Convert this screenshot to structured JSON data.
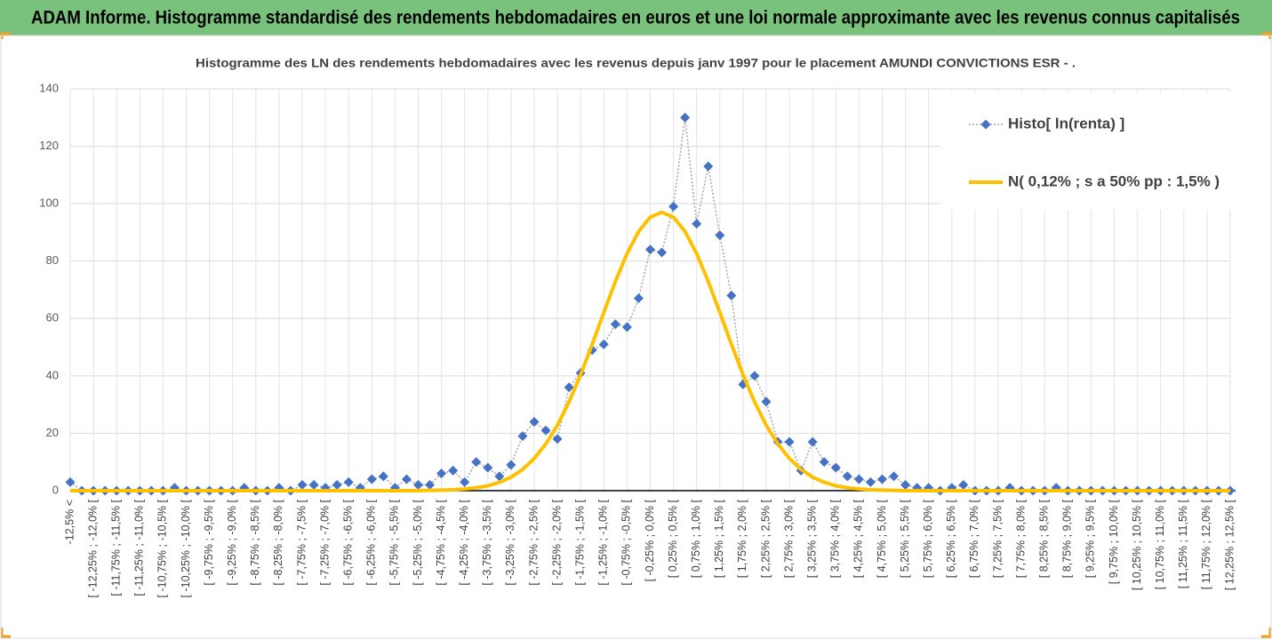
{
  "chart_data": {
    "type": "line",
    "title": "ADAM Informe. Histogramme standardisé des rendements hebdomadaires en euros et une loi normale approximante avec les revenus connus capitalisés",
    "subtitle": "Histogramme des LN des rendements hebdomadaires avec les revenus depuis janv 1997 pour le placement AMUNDI CONVICTIONS ESR - .",
    "categories": [
      "-12,5% <",
      null,
      "[ -12,25% ; -12,0% [",
      null,
      "[ -11,75% ; -11,5% [",
      null,
      "[ -11,25% ; -11,0% [",
      null,
      "[ -10,75% ; -10,5% [",
      null,
      "[ -10,25% ; -10,0% [",
      null,
      "[ -9,75% ; -9,5% [",
      null,
      "[ -9,25% ; -9,0% [",
      null,
      "[ -8,75% ; -8,5% [",
      null,
      "[ -8,25% ; -8,0% [",
      null,
      "[ -7,75% ; -7,5% [",
      null,
      "[ -7,25% ; -7,0% [",
      null,
      "[ -6,75% ; -6,5% [",
      null,
      "[ -6,25% ; -6,0% [",
      null,
      "[ -5,75% ; -5,5% [",
      null,
      "[ -5,25% ; -5,0% [",
      null,
      "[ -4,75% ; -4,5% [",
      null,
      "[ -4,25% ; -4,0% [",
      null,
      "[ -3,75% ; -3,5% [",
      null,
      "[ -3,25% ; -3,0% [",
      null,
      "[ -2,75% ; -2,5% [",
      null,
      "[ -2,25% ; -2,0% [",
      null,
      "[ -1,75% ; -1,5% [",
      null,
      "[ -1,25% ; -1,0% [",
      null,
      "[ -0,75% ; -0,5% [",
      null,
      "[ -0,25% ; 0,0% [",
      null,
      "[ 0,25% ; 0,5% [",
      null,
      "[ 0,75% ; 1,0% [",
      null,
      "[ 1,25% ; 1,5% [",
      null,
      "[ 1,75% ; 2,0% [",
      null,
      "[ 2,25% ; 2,5% [",
      null,
      "[ 2,75% ; 3,0% [",
      null,
      "[ 3,25% ; 3,5% [",
      null,
      "[ 3,75% ; 4,0% [",
      null,
      "[ 4,25% ; 4,5% [",
      null,
      "[ 4,75% ; 5,0% [",
      null,
      "[ 5,25% ; 5,5% [",
      null,
      "[ 5,75% ; 6,0% [",
      null,
      "[ 6,25% ; 6,5% [",
      null,
      "[ 6,75% ; 7,0% [",
      null,
      "[ 7,25% ; 7,5% [",
      null,
      "[ 7,75% ; 8,0% [",
      null,
      "[ 8,25% ; 8,5% [",
      null,
      "[ 8,75% ; 9,0% [",
      null,
      "[ 9,25% ; 9,5% [",
      null,
      "[ 9,75% ; 10,0% [",
      null,
      "[ 10,25% ; 10,5% [",
      null,
      "[ 10,75% ; 11,0% [",
      null,
      "[ 11,25% ; 11,5% [",
      null,
      "[ 11,75% ; 12,0% [",
      null,
      "[ 12,25% ; 12,5% ["
    ],
    "series": [
      {
        "name": "Histo[ ln(renta) ]",
        "color": "#4472c4",
        "line_color": "#a6a6a6",
        "marker": "diamond",
        "values": [
          3,
          0,
          0,
          0,
          0,
          0,
          0,
          0,
          0,
          1,
          0,
          0,
          0,
          0,
          0,
          1,
          0,
          0,
          1,
          0,
          2,
          2,
          1,
          2,
          3,
          1,
          4,
          5,
          1,
          4,
          2,
          2,
          6,
          7,
          3,
          10,
          8,
          5,
          9,
          19,
          24,
          21,
          18,
          36,
          41,
          49,
          51,
          58,
          57,
          67,
          84,
          83,
          99,
          130,
          93,
          113,
          89,
          68,
          37,
          40,
          31,
          17,
          17,
          7,
          17,
          10,
          8,
          5,
          4,
          3,
          4,
          5,
          2,
          1,
          1,
          0,
          1,
          2,
          0,
          0,
          0,
          1,
          0,
          0,
          0,
          1,
          0,
          0,
          0,
          0,
          0,
          0,
          0,
          0,
          0,
          0,
          0,
          0,
          0,
          0,
          0
        ]
      },
      {
        "name": "N( 0,12% ; s a 50% pp : 1,5% )",
        "color": "#ffc000",
        "marker": "none",
        "values": [
          0,
          0,
          0,
          0,
          0,
          0,
          0,
          0,
          0,
          0,
          0,
          0,
          0,
          0,
          0,
          0,
          0,
          0,
          0,
          0,
          0,
          0,
          0,
          0,
          0,
          0,
          0,
          0,
          0,
          0,
          0,
          0.1,
          0.2,
          0.3,
          0.6,
          1.0,
          1.7,
          2.9,
          4.7,
          7.4,
          11.2,
          16.3,
          22.8,
          30.9,
          40.4,
          51.0,
          62.1,
          72.9,
          82.6,
          90.3,
          95.3,
          97,
          95.3,
          90.3,
          82.6,
          72.9,
          62.1,
          51.0,
          40.4,
          30.9,
          22.8,
          16.3,
          11.2,
          7.4,
          4.7,
          2.9,
          1.7,
          1.0,
          0.6,
          0.3,
          0.2,
          0.1,
          0,
          0,
          0,
          0,
          0,
          0,
          0,
          0,
          0,
          0,
          0,
          0,
          0,
          0,
          0,
          0,
          0,
          0,
          0,
          0,
          0,
          0,
          0,
          0,
          0,
          0,
          0,
          0,
          0
        ]
      }
    ],
    "ylim": [
      0,
      140
    ],
    "yticks": [
      0,
      20,
      40,
      60,
      80,
      100,
      120,
      140
    ],
    "grid": true,
    "legend": "top-right"
  }
}
